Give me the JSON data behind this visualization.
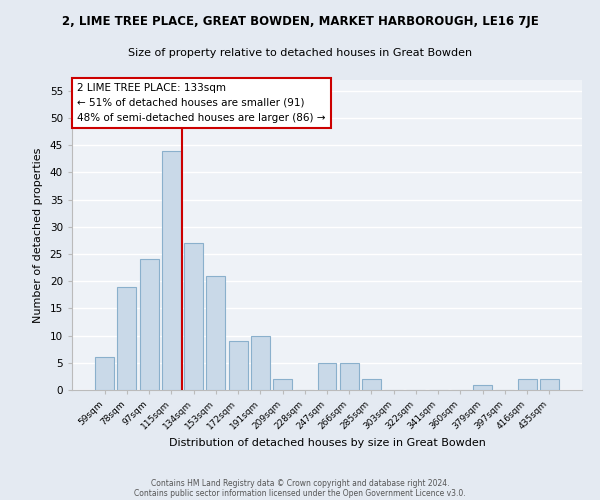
{
  "title": "2, LIME TREE PLACE, GREAT BOWDEN, MARKET HARBOROUGH, LE16 7JE",
  "subtitle": "Size of property relative to detached houses in Great Bowden",
  "xlabel": "Distribution of detached houses by size in Great Bowden",
  "ylabel": "Number of detached properties",
  "bar_color": "#c9d9e8",
  "bar_edge_color": "#8ab0cc",
  "background_color": "#eef2f7",
  "fig_background_color": "#e4eaf2",
  "grid_color": "#ffffff",
  "bin_labels": [
    "59sqm",
    "78sqm",
    "97sqm",
    "115sqm",
    "134sqm",
    "153sqm",
    "172sqm",
    "191sqm",
    "209sqm",
    "228sqm",
    "247sqm",
    "266sqm",
    "285sqm",
    "303sqm",
    "322sqm",
    "341sqm",
    "360sqm",
    "379sqm",
    "397sqm",
    "416sqm",
    "435sqm"
  ],
  "bar_values": [
    6,
    19,
    24,
    44,
    27,
    21,
    9,
    10,
    2,
    0,
    5,
    5,
    2,
    0,
    0,
    0,
    0,
    1,
    0,
    2,
    2
  ],
  "vline_color": "#cc0000",
  "ylim": [
    0,
    57
  ],
  "yticks": [
    0,
    5,
    10,
    15,
    20,
    25,
    30,
    35,
    40,
    45,
    50,
    55
  ],
  "annotation_title": "2 LIME TREE PLACE: 133sqm",
  "annotation_line1": "← 51% of detached houses are smaller (91)",
  "annotation_line2": "48% of semi-detached houses are larger (86) →",
  "annotation_box_edge": "#cc0000",
  "footer1": "Contains HM Land Registry data © Crown copyright and database right 2024.",
  "footer2": "Contains public sector information licensed under the Open Government Licence v3.0."
}
